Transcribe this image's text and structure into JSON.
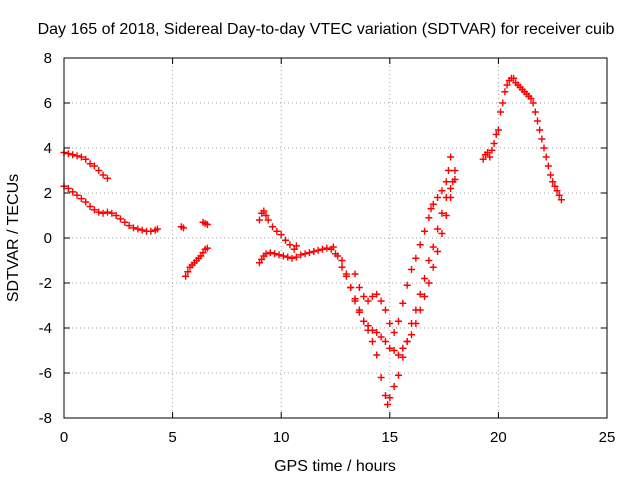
{
  "chart_data": {
    "type": "scatter",
    "title": "Day 165 of 2018, Sidereal Day-to-day VTEC variation (SDTVAR) for receiver cuib",
    "xlabel": "GPS time / hours",
    "ylabel": "SDTVAR / TECUs",
    "xlim": [
      0,
      25
    ],
    "ylim": [
      -8,
      8
    ],
    "x_ticks": [
      0,
      5,
      10,
      15,
      20,
      25
    ],
    "y_ticks": [
      -8,
      -6,
      -4,
      -2,
      0,
      2,
      4,
      6,
      8
    ],
    "grid": true,
    "marker": "+",
    "color": "#ff0000",
    "series": [
      {
        "values": [
          [
            0.0,
            3.8
          ],
          [
            0.2,
            3.75
          ],
          [
            0.4,
            3.7
          ],
          [
            0.6,
            3.65
          ],
          [
            0.8,
            3.6
          ],
          [
            1.0,
            3.5
          ],
          [
            1.2,
            3.3
          ],
          [
            1.4,
            3.2
          ],
          [
            1.6,
            3.0
          ],
          [
            1.8,
            2.8
          ],
          [
            2.0,
            2.65
          ],
          [
            0.0,
            2.3
          ],
          [
            0.2,
            2.2
          ],
          [
            0.4,
            2.05
          ],
          [
            0.6,
            1.9
          ],
          [
            0.8,
            1.75
          ],
          [
            1.0,
            1.6
          ],
          [
            1.2,
            1.4
          ],
          [
            1.4,
            1.25
          ],
          [
            1.6,
            1.15
          ],
          [
            1.8,
            1.1
          ],
          [
            2.0,
            1.15
          ],
          [
            2.2,
            1.1
          ],
          [
            2.4,
            1.0
          ],
          [
            2.6,
            0.85
          ],
          [
            2.8,
            0.7
          ],
          [
            3.0,
            0.55
          ],
          [
            3.2,
            0.45
          ],
          [
            3.4,
            0.4
          ],
          [
            3.6,
            0.35
          ],
          [
            3.8,
            0.3
          ],
          [
            4.0,
            0.3
          ],
          [
            4.2,
            0.35
          ],
          [
            4.3,
            0.4
          ],
          [
            5.4,
            0.5
          ],
          [
            5.5,
            0.45
          ]
        ]
      },
      {
        "values": [
          [
            5.6,
            -1.7
          ],
          [
            5.7,
            -1.5
          ],
          [
            5.8,
            -1.3
          ],
          [
            5.9,
            -1.2
          ],
          [
            6.0,
            -1.1
          ],
          [
            6.1,
            -1.0
          ],
          [
            6.2,
            -0.9
          ],
          [
            6.3,
            -0.8
          ],
          [
            6.4,
            -0.65
          ],
          [
            6.5,
            -0.5
          ],
          [
            6.6,
            -0.45
          ],
          [
            6.4,
            0.7
          ],
          [
            6.5,
            0.65
          ],
          [
            6.6,
            0.6
          ]
        ]
      },
      {
        "values": [
          [
            9.0,
            -1.1
          ],
          [
            9.1,
            -0.95
          ],
          [
            9.2,
            -0.8
          ],
          [
            9.3,
            -0.7
          ],
          [
            9.5,
            -0.65
          ],
          [
            9.7,
            -0.7
          ],
          [
            9.9,
            -0.75
          ],
          [
            10.1,
            -0.8
          ],
          [
            10.3,
            -0.85
          ],
          [
            10.5,
            -0.9
          ],
          [
            10.7,
            -0.85
          ],
          [
            10.9,
            -0.75
          ],
          [
            11.1,
            -0.7
          ],
          [
            11.3,
            -0.65
          ],
          [
            11.5,
            -0.6
          ],
          [
            11.7,
            -0.55
          ],
          [
            11.9,
            -0.5
          ],
          [
            12.1,
            -0.45
          ],
          [
            12.3,
            -0.5
          ],
          [
            12.5,
            -0.7
          ],
          [
            9.0,
            0.8
          ],
          [
            9.1,
            1.1
          ],
          [
            9.2,
            1.2
          ],
          [
            9.3,
            1.0
          ],
          [
            9.4,
            0.8
          ],
          [
            9.6,
            0.5
          ],
          [
            9.8,
            0.3
          ],
          [
            10.0,
            0.15
          ],
          [
            10.2,
            -0.1
          ],
          [
            10.4,
            -0.3
          ],
          [
            10.6,
            -0.5
          ],
          [
            10.7,
            -0.35
          ],
          [
            12.4,
            -0.4
          ],
          [
            12.6,
            -0.8
          ],
          [
            12.8,
            -1.3
          ],
          [
            13.0,
            -1.7
          ],
          [
            13.2,
            -2.2
          ],
          [
            13.4,
            -2.8
          ],
          [
            13.6,
            -3.3
          ],
          [
            13.8,
            -3.7
          ],
          [
            14.0,
            -4.1
          ],
          [
            14.2,
            -4.6
          ],
          [
            14.4,
            -5.2
          ],
          [
            14.6,
            -6.2
          ],
          [
            14.8,
            -7.0
          ],
          [
            14.9,
            -7.4
          ],
          [
            15.0,
            -7.1
          ],
          [
            15.2,
            -6.6
          ],
          [
            15.4,
            -6.1
          ],
          [
            15.6,
            -5.3
          ],
          [
            15.8,
            -4.6
          ],
          [
            16.0,
            -3.8
          ],
          [
            16.2,
            -3.2
          ],
          [
            16.4,
            -2.5
          ],
          [
            16.6,
            -1.8
          ],
          [
            16.8,
            -1.0
          ],
          [
            17.0,
            -0.4
          ],
          [
            17.2,
            0.4
          ],
          [
            17.4,
            1.1
          ],
          [
            17.6,
            1.8
          ],
          [
            17.8,
            2.2
          ],
          [
            18.0,
            2.6
          ],
          [
            12.8,
            -1.0
          ],
          [
            13.0,
            -1.6
          ],
          [
            13.2,
            -2.2
          ],
          [
            13.4,
            -2.7
          ],
          [
            13.6,
            -3.2
          ],
          [
            13.8,
            -3.7
          ],
          [
            14.0,
            -3.9
          ],
          [
            14.2,
            -4.1
          ],
          [
            14.4,
            -4.2
          ],
          [
            14.6,
            -4.4
          ],
          [
            14.8,
            -4.6
          ],
          [
            15.0,
            -4.9
          ],
          [
            15.2,
            -5.0
          ],
          [
            15.4,
            -5.2
          ],
          [
            15.6,
            -4.9
          ],
          [
            15.8,
            -4.6
          ],
          [
            16.0,
            -4.3
          ],
          [
            16.2,
            -3.8
          ],
          [
            16.4,
            -3.2
          ],
          [
            16.6,
            -2.6
          ],
          [
            16.8,
            -2.0
          ],
          [
            17.0,
            -1.3
          ],
          [
            17.2,
            -0.6
          ],
          [
            17.4,
            0.2
          ],
          [
            17.6,
            1.0
          ],
          [
            17.8,
            1.8
          ],
          [
            17.9,
            2.5
          ],
          [
            18.0,
            3.0
          ],
          [
            13.4,
            -1.6
          ],
          [
            13.6,
            -2.2
          ],
          [
            13.8,
            -2.6
          ],
          [
            14.0,
            -2.8
          ],
          [
            14.2,
            -2.6
          ],
          [
            14.4,
            -2.5
          ],
          [
            14.6,
            -2.8
          ],
          [
            14.8,
            -3.2
          ],
          [
            15.0,
            -3.8
          ],
          [
            15.2,
            -4.2
          ],
          [
            15.4,
            -3.7
          ],
          [
            15.6,
            -2.9
          ],
          [
            15.8,
            -2.1
          ],
          [
            16.0,
            -1.4
          ],
          [
            16.2,
            -0.9
          ],
          [
            16.4,
            -0.3
          ],
          [
            16.6,
            0.3
          ],
          [
            16.8,
            0.9
          ],
          [
            16.9,
            1.3
          ],
          [
            17.0,
            1.5
          ],
          [
            17.2,
            1.8
          ],
          [
            17.4,
            2.1
          ],
          [
            17.6,
            2.5
          ],
          [
            17.7,
            3.0
          ],
          [
            17.8,
            3.6
          ]
        ]
      },
      {
        "values": [
          [
            19.3,
            3.5
          ],
          [
            19.4,
            3.7
          ],
          [
            19.5,
            3.8
          ],
          [
            19.6,
            3.6
          ],
          [
            19.7,
            3.9
          ],
          [
            19.8,
            4.2
          ],
          [
            19.9,
            4.6
          ],
          [
            20.0,
            4.8
          ],
          [
            20.1,
            5.6
          ],
          [
            20.2,
            6.0
          ],
          [
            20.3,
            6.5
          ],
          [
            20.4,
            6.8
          ],
          [
            20.5,
            7.0
          ],
          [
            20.6,
            7.1
          ],
          [
            20.7,
            7.1
          ],
          [
            20.8,
            6.9
          ],
          [
            20.9,
            6.8
          ],
          [
            21.0,
            6.7
          ],
          [
            21.1,
            6.6
          ],
          [
            21.2,
            6.5
          ],
          [
            21.3,
            6.4
          ],
          [
            21.4,
            6.3
          ],
          [
            21.5,
            6.2
          ],
          [
            21.6,
            6.0
          ],
          [
            21.7,
            5.6
          ],
          [
            21.8,
            5.2
          ],
          [
            21.9,
            4.8
          ],
          [
            22.0,
            4.4
          ],
          [
            22.1,
            4.0
          ],
          [
            22.2,
            3.6
          ],
          [
            22.3,
            3.2
          ],
          [
            22.4,
            2.8
          ],
          [
            22.5,
            2.5
          ],
          [
            22.6,
            2.3
          ],
          [
            22.7,
            2.1
          ],
          [
            22.8,
            1.9
          ],
          [
            22.9,
            1.7
          ]
        ]
      }
    ]
  }
}
